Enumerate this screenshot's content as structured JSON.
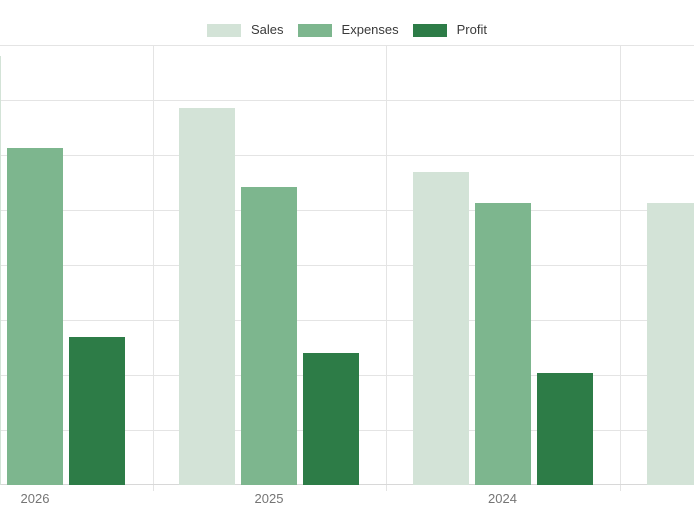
{
  "chart_data": {
    "type": "bar",
    "categories": [
      "2026",
      "2025",
      "2024",
      ""
    ],
    "series": [
      {
        "name": "Sales",
        "color": "#d3e3d7",
        "values": [
          78,
          68.5,
          57,
          51.2
        ]
      },
      {
        "name": "Expenses",
        "color": "#7db68e",
        "values": [
          61.2,
          54.1,
          51.3,
          null
        ]
      },
      {
        "name": "Profit",
        "color": "#2d7c47",
        "values": [
          27,
          24,
          20.3,
          null
        ]
      }
    ],
    "title": "",
    "xlabel": "",
    "ylabel": "",
    "ylim": [
      0,
      80
    ],
    "grid": true,
    "gridline_step": 10,
    "legend_position": "top",
    "notes": "Chart is cropped: left edge clips the 2026 Sales bar (only a sliver visible), right edge clips a fourth group (only part of its Sales bar visible, its x-axis label is off-screen). No y-axis labels are visible; values are estimated in gridline units of 10."
  },
  "colors": {
    "background": "#ffffff",
    "gridline": "#e4e4e4",
    "axis_line": "#d8d8d8",
    "axis_label_text": "#757575",
    "legend_text": "#3a3a3a"
  }
}
